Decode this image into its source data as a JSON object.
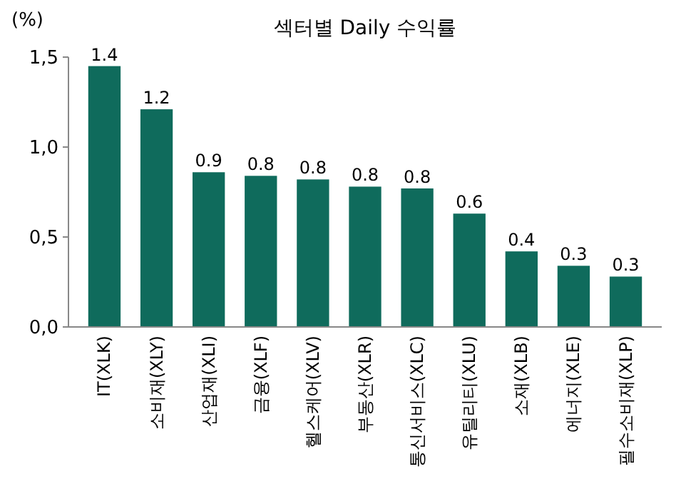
{
  "chart_data": {
    "type": "bar",
    "title": "섹터별 Daily 수익률",
    "ylabel": "(%)",
    "categories": [
      "IT(XLK)",
      "소비재(XLY)",
      "산업재(XLI)",
      "금융(XLF)",
      "헬스케어(XLV)",
      "부동산(XLR)",
      "통신서비스(XLC)",
      "유틸리티(XLU)",
      "소재(XLB)",
      "에너지(XLE)",
      "필수소비재(XLP)"
    ],
    "values": [
      1.45,
      1.21,
      0.86,
      0.84,
      0.82,
      0.78,
      0.77,
      0.63,
      0.42,
      0.34,
      0.28
    ],
    "value_labels": [
      "1.4",
      "1.2",
      "0.9",
      "0.8",
      "0.8",
      "0.8",
      "0.8",
      "0.6",
      "0.4",
      "0.3",
      "0.3"
    ],
    "color": "#0f6b5c",
    "ylim": [
      0,
      1.5
    ],
    "yticks": [
      {
        "value": 0,
        "label": "0,0"
      },
      {
        "value": 0.5,
        "label": "0,5"
      },
      {
        "value": 1,
        "label": "1,0"
      },
      {
        "value": 1.5,
        "label": "1,5"
      }
    ],
    "grid": false
  }
}
